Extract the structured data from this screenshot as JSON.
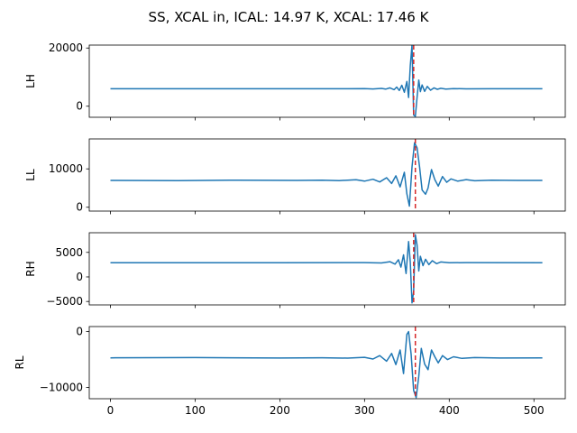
{
  "figure": {
    "title": "SS, XCAL in, ICAL: 14.97 K, XCAL: 17.46 K"
  },
  "chart_data": [
    {
      "type": "line",
      "ylabel": "LH",
      "xlim": [
        -25,
        537
      ],
      "ylim": [
        -3800,
        21000
      ],
      "xticks": [
        0,
        100,
        200,
        300,
        400,
        500
      ],
      "xtick_labels_visible": false,
      "yticks": [
        0,
        20000
      ],
      "baseline": 6000,
      "marker_x": 358,
      "series": [
        {
          "values": [
            [
              0,
              6000
            ],
            [
              100,
              6000
            ],
            [
              200,
              6000
            ],
            [
              280,
              6000
            ],
            [
              300,
              6060
            ],
            [
              310,
              5920
            ],
            [
              320,
              6120
            ],
            [
              325,
              5880
            ],
            [
              330,
              6300
            ],
            [
              335,
              5700
            ],
            [
              338,
              6600
            ],
            [
              341,
              5400
            ],
            [
              344,
              7200
            ],
            [
              347,
              4800
            ],
            [
              350,
              8500
            ],
            [
              352,
              3000
            ],
            [
              354,
              14000
            ],
            [
              356,
              21000
            ],
            [
              358,
              -3000
            ],
            [
              360,
              -3500
            ],
            [
              362,
              3000
            ],
            [
              364,
              9000
            ],
            [
              366,
              5000
            ],
            [
              368,
              7300
            ],
            [
              371,
              5100
            ],
            [
              374,
              6800
            ],
            [
              378,
              5500
            ],
            [
              382,
              6300
            ],
            [
              386,
              5800
            ],
            [
              390,
              6150
            ],
            [
              396,
              5900
            ],
            [
              405,
              6050
            ],
            [
              420,
              5980
            ],
            [
              450,
              6000
            ],
            [
              510,
              6000
            ]
          ]
        }
      ],
      "marker_color": "#d62728",
      "line_color": "#1f77b4"
    },
    {
      "type": "line",
      "ylabel": "LL",
      "xlim": [
        -25,
        537
      ],
      "ylim": [
        -1000,
        17800
      ],
      "xticks": [
        0,
        100,
        200,
        300,
        400,
        500
      ],
      "xtick_labels_visible": false,
      "yticks": [
        0,
        10000
      ],
      "baseline": 7000,
      "marker_x": 360,
      "series": [
        {
          "values": [
            [
              0,
              7000
            ],
            [
              80,
              6950
            ],
            [
              150,
              7050
            ],
            [
              220,
              6980
            ],
            [
              250,
              7050
            ],
            [
              270,
              6950
            ],
            [
              290,
              7150
            ],
            [
              300,
              6800
            ],
            [
              310,
              7300
            ],
            [
              318,
              6600
            ],
            [
              326,
              7700
            ],
            [
              332,
              6200
            ],
            [
              337,
              8200
            ],
            [
              342,
              5300
            ],
            [
              347,
              9100
            ],
            [
              350,
              3500
            ],
            [
              353,
              300
            ],
            [
              356,
              10500
            ],
            [
              359,
              16800
            ],
            [
              362,
              15500
            ],
            [
              365,
              10500
            ],
            [
              368,
              4500
            ],
            [
              372,
              3400
            ],
            [
              375,
              5000
            ],
            [
              379,
              9800
            ],
            [
              383,
              7200
            ],
            [
              387,
              5500
            ],
            [
              392,
              8000
            ],
            [
              397,
              6500
            ],
            [
              402,
              7400
            ],
            [
              410,
              6800
            ],
            [
              420,
              7200
            ],
            [
              430,
              6900
            ],
            [
              450,
              7050
            ],
            [
              480,
              7000
            ],
            [
              510,
              7000
            ]
          ]
        }
      ],
      "marker_color": "#d62728",
      "line_color": "#1f77b4"
    },
    {
      "type": "line",
      "ylabel": "RH",
      "xlim": [
        -25,
        537
      ],
      "ylim": [
        -5700,
        9000
      ],
      "xticks": [
        0,
        100,
        200,
        300,
        400,
        500
      ],
      "xtick_labels_visible": false,
      "yticks": [
        -5000,
        0,
        5000
      ],
      "baseline": 2900,
      "marker_x": 358,
      "series": [
        {
          "values": [
            [
              0,
              2900
            ],
            [
              100,
              2900
            ],
            [
              200,
              2900
            ],
            [
              300,
              2920
            ],
            [
              320,
              2850
            ],
            [
              330,
              3100
            ],
            [
              336,
              2600
            ],
            [
              340,
              3500
            ],
            [
              343,
              2000
            ],
            [
              346,
              4500
            ],
            [
              349,
              700
            ],
            [
              352,
              7200
            ],
            [
              354,
              3000
            ],
            [
              356,
              -5300
            ],
            [
              358,
              -3000
            ],
            [
              360,
              8600
            ],
            [
              362,
              6500
            ],
            [
              364,
              1200
            ],
            [
              366,
              4200
            ],
            [
              369,
              2300
            ],
            [
              372,
              3600
            ],
            [
              376,
              2500
            ],
            [
              380,
              3300
            ],
            [
              385,
              2700
            ],
            [
              390,
              3050
            ],
            [
              400,
              2880
            ],
            [
              420,
              2920
            ],
            [
              510,
              2900
            ]
          ]
        }
      ],
      "marker_color": "#d62728",
      "line_color": "#1f77b4"
    },
    {
      "type": "line",
      "ylabel": "RL",
      "xlabel": "",
      "xlim": [
        -25,
        537
      ],
      "ylim": [
        -12000,
        900
      ],
      "xticks": [
        0,
        100,
        200,
        300,
        400,
        500
      ],
      "xtick_labels_visible": true,
      "yticks": [
        -10000,
        0
      ],
      "baseline": -4700,
      "marker_x": 360,
      "series": [
        {
          "values": [
            [
              0,
              -4700
            ],
            [
              100,
              -4650
            ],
            [
              200,
              -4720
            ],
            [
              250,
              -4680
            ],
            [
              280,
              -4750
            ],
            [
              300,
              -4600
            ],
            [
              310,
              -4900
            ],
            [
              318,
              -4300
            ],
            [
              326,
              -5300
            ],
            [
              332,
              -3900
            ],
            [
              337,
              -5900
            ],
            [
              342,
              -3300
            ],
            [
              346,
              -7500
            ],
            [
              350,
              -500
            ],
            [
              352,
              0
            ],
            [
              355,
              -4000
            ],
            [
              358,
              -10500
            ],
            [
              361,
              -11800
            ],
            [
              364,
              -8000
            ],
            [
              367,
              -3000
            ],
            [
              371,
              -5800
            ],
            [
              375,
              -6800
            ],
            [
              379,
              -3300
            ],
            [
              383,
              -4500
            ],
            [
              387,
              -5600
            ],
            [
              392,
              -4300
            ],
            [
              398,
              -5000
            ],
            [
              405,
              -4500
            ],
            [
              415,
              -4800
            ],
            [
              430,
              -4650
            ],
            [
              460,
              -4720
            ],
            [
              510,
              -4700
            ]
          ]
        }
      ],
      "marker_color": "#d62728",
      "line_color": "#1f77b4"
    }
  ]
}
